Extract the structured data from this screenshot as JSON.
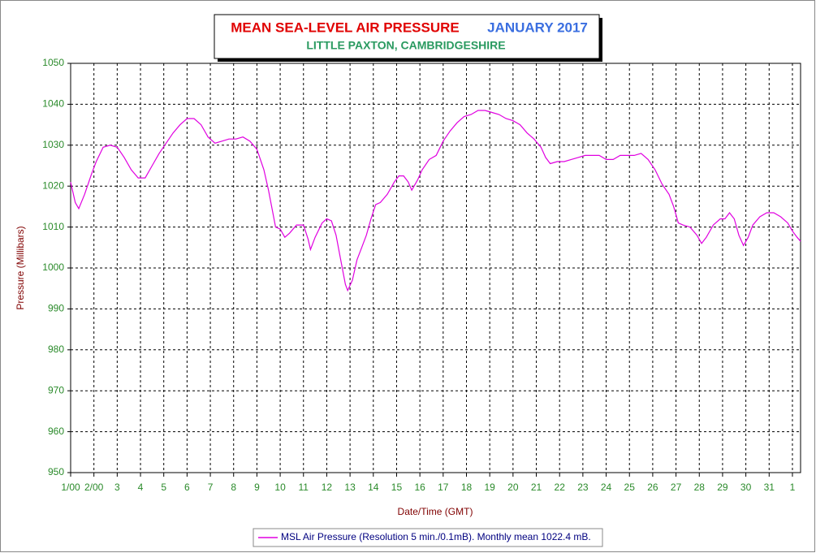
{
  "chart_data": {
    "type": "line",
    "title": "MEAN SEA-LEVEL AIR PRESSURE",
    "title_period": "JANUARY 2017",
    "subtitle": "LITTLE PAXTON, CAMBRIDGESHIRE",
    "x_label": "Date/Time (GMT)",
    "y_label": "Pressure (Millibars)",
    "xlim": [
      1,
      32.35
    ],
    "xticks": [
      {
        "value": 1,
        "label": "1/00"
      },
      {
        "value": 2,
        "label": "2/00"
      },
      3,
      4,
      5,
      6,
      7,
      8,
      9,
      10,
      11,
      12,
      13,
      14,
      15,
      16,
      17,
      18,
      19,
      20,
      21,
      22,
      23,
      24,
      25,
      26,
      27,
      28,
      29,
      30,
      31,
      {
        "value": 32,
        "label": "1"
      }
    ],
    "ylim": [
      950,
      1050
    ],
    "yticks": [
      950,
      960,
      970,
      980,
      990,
      1000,
      1010,
      1020,
      1030,
      1040,
      1050
    ],
    "grid": true,
    "legend": "bottom",
    "x": [
      1.0,
      1.2,
      1.35,
      1.6,
      1.9,
      2.1,
      2.4,
      2.7,
      3.0,
      3.3,
      3.6,
      3.9,
      4.2,
      4.5,
      4.8,
      5.1,
      5.4,
      5.7,
      6.0,
      6.3,
      6.6,
      6.9,
      7.2,
      7.5,
      7.8,
      8.1,
      8.4,
      8.7,
      9.0,
      9.3,
      9.5,
      9.7,
      9.8,
      10.0,
      10.2,
      10.4,
      10.7,
      11.0,
      11.2,
      11.3,
      11.5,
      11.8,
      12.0,
      12.2,
      12.4,
      12.6,
      12.8,
      12.9,
      13.1,
      13.3,
      13.5,
      13.7,
      13.9,
      14.1,
      14.3,
      14.6,
      14.9,
      15.1,
      15.3,
      15.5,
      15.65,
      15.9,
      16.1,
      16.4,
      16.7,
      17.0,
      17.3,
      17.6,
      17.9,
      18.2,
      18.5,
      18.8,
      19.1,
      19.4,
      19.7,
      20.0,
      20.3,
      20.6,
      20.9,
      21.2,
      21.4,
      21.6,
      21.9,
      22.2,
      22.5,
      22.8,
      23.1,
      23.4,
      23.7,
      24.0,
      24.3,
      24.6,
      24.9,
      25.2,
      25.5,
      25.8,
      26.1,
      26.4,
      26.7,
      26.9,
      27.1,
      27.3,
      27.6,
      27.9,
      28.1,
      28.3,
      28.6,
      28.9,
      29.1,
      29.3,
      29.5,
      29.7,
      29.9,
      30.1,
      30.3,
      30.6,
      30.9,
      31.2,
      31.5,
      31.8,
      32.0,
      32.2,
      32.35
    ],
    "series": [
      {
        "name": "MSL Air Pressure (Resolution 5 min./0.1mB). Monthly mean 1022.4 mB.",
        "color": "#e000e0",
        "values": [
          1021,
          1016,
          1014.5,
          1018,
          1023,
          1026,
          1029.5,
          1030,
          1029.5,
          1027,
          1024,
          1022,
          1022,
          1025,
          1028,
          1030.5,
          1033,
          1035,
          1036.5,
          1036.5,
          1035,
          1032,
          1030.5,
          1031,
          1031.5,
          1031.5,
          1032,
          1031,
          1029,
          1024,
          1019,
          1013,
          1010,
          1009.5,
          1007.5,
          1008.5,
          1010.5,
          1010.5,
          1007,
          1004.5,
          1007.5,
          1011,
          1012,
          1011.5,
          1008,
          1002,
          996,
          994.5,
          997,
          1002,
          1005,
          1008,
          1012,
          1015.5,
          1016,
          1018,
          1021,
          1022.5,
          1022.5,
          1021,
          1019,
          1021.5,
          1024,
          1026.5,
          1027.5,
          1031,
          1033.5,
          1035.5,
          1037,
          1037.5,
          1038.5,
          1038.5,
          1038,
          1037.5,
          1036.5,
          1036,
          1035,
          1033,
          1031.5,
          1029.5,
          1027,
          1025.5,
          1026,
          1026,
          1026.5,
          1027,
          1027.5,
          1027.5,
          1027.5,
          1026.5,
          1026.5,
          1027.5,
          1027.5,
          1027.5,
          1028,
          1026.5,
          1024,
          1020.5,
          1018,
          1015,
          1011,
          1010.5,
          1010,
          1008,
          1006,
          1007.5,
          1010.5,
          1012,
          1012,
          1013.5,
          1012,
          1008,
          1005.5,
          1007.5,
          1010.5,
          1012.5,
          1013.5,
          1013.5,
          1012.5,
          1011,
          1009,
          1007.5,
          1006.5
        ]
      }
    ]
  }
}
